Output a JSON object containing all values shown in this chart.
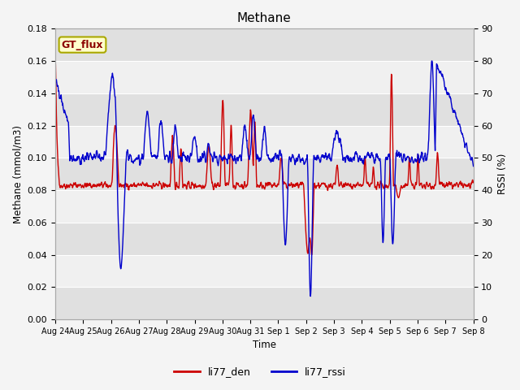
{
  "title": "Methane",
  "xlabel": "Time",
  "ylabel_left": "Methane (mmol/m3)",
  "ylabel_right": "RSSI (%)",
  "ylim_left": [
    0.0,
    0.18
  ],
  "ylim_right": [
    0,
    90
  ],
  "yticks_left": [
    0.0,
    0.02,
    0.04,
    0.06,
    0.08,
    0.1,
    0.12,
    0.14,
    0.16,
    0.18
  ],
  "yticks_right": [
    0,
    10,
    20,
    30,
    40,
    50,
    60,
    70,
    80,
    90
  ],
  "xtick_labels": [
    "Aug 24",
    "Aug 25",
    "Aug 26",
    "Aug 27",
    "Aug 28",
    "Aug 29",
    "Aug 30",
    "Aug 31",
    "Sep 1",
    "Sep 2",
    "Sep 3",
    "Sep 4",
    "Sep 5",
    "Sep 6",
    "Sep 7",
    "Sep 8"
  ],
  "color_red": "#cc0000",
  "color_blue": "#0000cc",
  "legend_label_red": "li77_den",
  "legend_label_blue": "li77_rssi",
  "annotation_text": "GT_flux",
  "annotation_facecolor": "#ffffcc",
  "annotation_edgecolor": "#aaa800",
  "bg_color": "#ffffff",
  "band_color_dark": "#e0e0e0",
  "band_color_light": "#f0f0f0",
  "line_width": 1.0
}
